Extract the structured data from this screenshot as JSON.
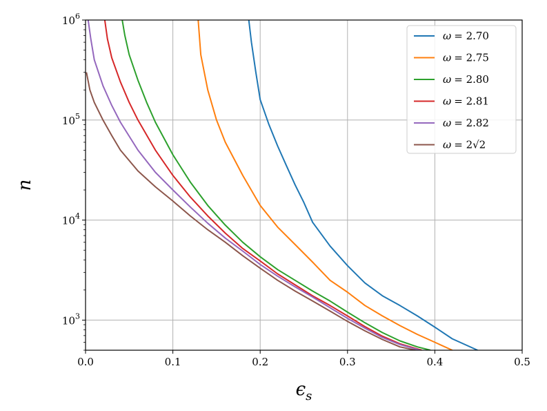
{
  "chart_data": {
    "type": "line",
    "xlabel": "ϵs",
    "ylabel": "n",
    "xlim": [
      0.0,
      0.5
    ],
    "ylim": [
      500,
      1000000
    ],
    "yscale": "log",
    "grid": true,
    "legend_position": "top-right",
    "x_ticks": [
      0.0,
      0.1,
      0.2,
      0.3,
      0.4,
      0.5
    ],
    "x_tick_labels": [
      "0.0",
      "0.1",
      "0.2",
      "0.3",
      "0.4",
      "0.5"
    ],
    "y_ticks": [
      {
        "value": 1000,
        "base": "10",
        "exp": "3"
      },
      {
        "value": 10000,
        "base": "10",
        "exp": "4"
      },
      {
        "value": 100000,
        "base": "10",
        "exp": "5"
      },
      {
        "value": 1000000,
        "base": "10",
        "exp": "6"
      }
    ],
    "series": [
      {
        "name": "ω = 2.70",
        "legend_omega": "ω",
        "legend_value": "= 2.70",
        "color": "#1f77b4",
        "x": [
          0.187,
          0.19,
          0.195,
          0.2,
          0.21,
          0.22,
          0.23,
          0.24,
          0.25,
          0.26,
          0.28,
          0.3,
          0.32,
          0.34,
          0.36,
          0.38,
          0.4,
          0.42,
          0.449
        ],
        "y": [
          1000000,
          600000,
          300000,
          160000,
          90000,
          55000,
          35000,
          22500,
          15000,
          9500,
          5500,
          3500,
          2350,
          1750,
          1400,
          1100,
          850,
          650,
          500
        ]
      },
      {
        "name": "ω = 2.75",
        "legend_omega": "ω",
        "legend_value": "= 2.75",
        "color": "#ff7f0e",
        "x": [
          0.129,
          0.132,
          0.14,
          0.15,
          0.16,
          0.18,
          0.2,
          0.22,
          0.24,
          0.26,
          0.28,
          0.3,
          0.32,
          0.34,
          0.36,
          0.38,
          0.4,
          0.42
        ],
        "y": [
          1000000,
          450000,
          200000,
          100000,
          60000,
          28000,
          14000,
          8500,
          5700,
          3800,
          2500,
          1900,
          1400,
          1100,
          880,
          720,
          600,
          500
        ]
      },
      {
        "name": "ω = 2.80",
        "legend_omega": "ω",
        "legend_value": "= 2.80",
        "color": "#2ca02c",
        "x": [
          0.042,
          0.045,
          0.05,
          0.06,
          0.07,
          0.08,
          0.1,
          0.12,
          0.14,
          0.16,
          0.18,
          0.2,
          0.22,
          0.24,
          0.26,
          0.28,
          0.3,
          0.32,
          0.34,
          0.36,
          0.38,
          0.395
        ],
        "y": [
          1000000,
          700000,
          450000,
          250000,
          150000,
          95000,
          45000,
          24000,
          14000,
          8900,
          6000,
          4300,
          3200,
          2500,
          1950,
          1550,
          1200,
          940,
          750,
          620,
          540,
          500
        ]
      },
      {
        "name": "ω = 2.81",
        "legend_omega": "ω",
        "legend_value": "= 2.81",
        "color": "#d62728",
        "x": [
          0.022,
          0.025,
          0.03,
          0.04,
          0.05,
          0.06,
          0.08,
          0.1,
          0.12,
          0.14,
          0.16,
          0.18,
          0.2,
          0.22,
          0.24,
          0.26,
          0.28,
          0.3,
          0.32,
          0.34,
          0.36,
          0.385
        ],
        "y": [
          1000000,
          650000,
          420000,
          240000,
          150000,
          100000,
          50000,
          28000,
          17000,
          11000,
          7400,
          5200,
          3900,
          2900,
          2250,
          1750,
          1400,
          1100,
          860,
          690,
          580,
          500
        ]
      },
      {
        "name": "ω = 2.82",
        "legend_omega": "ω",
        "legend_value": "= 2.82",
        "color": "#9467bd",
        "x": [
          0.003,
          0.006,
          0.01,
          0.02,
          0.03,
          0.04,
          0.06,
          0.08,
          0.1,
          0.12,
          0.14,
          0.16,
          0.18,
          0.2,
          0.22,
          0.24,
          0.26,
          0.28,
          0.3,
          0.32,
          0.34,
          0.36,
          0.383
        ],
        "y": [
          1000000,
          650000,
          400000,
          220000,
          140000,
          95000,
          50000,
          30000,
          20000,
          13500,
          9300,
          6600,
          4900,
          3600,
          2750,
          2150,
          1700,
          1330,
          1040,
          830,
          670,
          570,
          500
        ]
      },
      {
        "name": "ω = 2√2",
        "legend_omega": "ω",
        "legend_value": "= 2√2",
        "color": "#8c564b",
        "x": [
          0.001,
          0.005,
          0.01,
          0.02,
          0.03,
          0.04,
          0.06,
          0.08,
          0.1,
          0.12,
          0.14,
          0.16,
          0.18,
          0.2,
          0.22,
          0.24,
          0.26,
          0.28,
          0.3,
          0.32,
          0.34,
          0.36,
          0.378
        ],
        "y": [
          300000,
          200000,
          150000,
          100000,
          70000,
          50000,
          31000,
          21500,
          15500,
          11000,
          8000,
          6000,
          4400,
          3300,
          2500,
          1950,
          1550,
          1230,
          970,
          780,
          640,
          540,
          500
        ]
      }
    ]
  }
}
